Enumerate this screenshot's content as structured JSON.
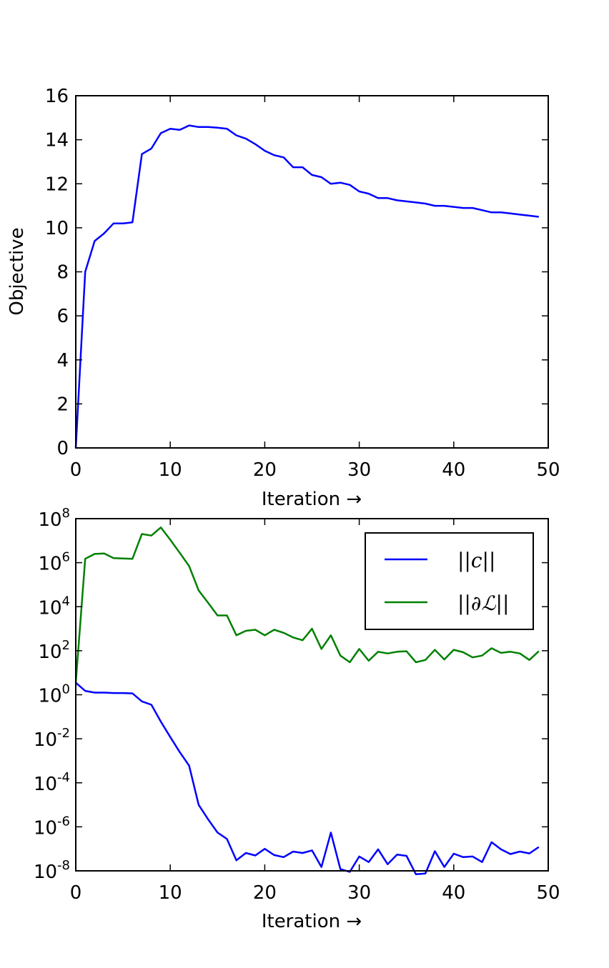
{
  "chart_data": [
    {
      "type": "line",
      "xlabel": "Iteration →",
      "ylabel": "Objective",
      "xlim": [
        0,
        50
      ],
      "ylim": [
        0,
        16
      ],
      "xticks": [
        "0",
        "10",
        "20",
        "30",
        "40",
        "50"
      ],
      "yticks": [
        "0",
        "2",
        "4",
        "6",
        "8",
        "10",
        "12",
        "14",
        "16"
      ],
      "grid": false,
      "series": [
        {
          "color": "#0000ff",
          "x": [
            0,
            1,
            2,
            3,
            4,
            5,
            6,
            7,
            8,
            9,
            10,
            11,
            12,
            13,
            14,
            15,
            16,
            17,
            18,
            19,
            20,
            21,
            22,
            23,
            24,
            25,
            26,
            27,
            28,
            29,
            30,
            31,
            32,
            33,
            34,
            35,
            36,
            37,
            38,
            39,
            40,
            41,
            42,
            43,
            44,
            45,
            46,
            47,
            48,
            49
          ],
          "values": [
            0.0,
            8.0,
            9.4,
            9.75,
            10.2,
            10.2,
            10.25,
            13.35,
            13.6,
            14.3,
            14.5,
            14.45,
            14.65,
            14.58,
            14.58,
            14.55,
            14.5,
            14.2,
            14.05,
            13.8,
            13.5,
            13.3,
            13.2,
            12.75,
            12.75,
            12.4,
            12.3,
            12.0,
            12.05,
            11.95,
            11.65,
            11.55,
            11.35,
            11.35,
            11.25,
            11.2,
            11.15,
            11.1,
            11.0,
            11.0,
            10.95,
            10.9,
            10.9,
            10.8,
            10.7,
            10.7,
            10.65,
            10.6,
            10.55,
            10.5
          ]
        }
      ]
    },
    {
      "type": "line",
      "xlabel": "Iteration →",
      "ylabel": "",
      "xlim": [
        0,
        50
      ],
      "ylim": [
        1e-08,
        100000000.0
      ],
      "yscale": "log",
      "xticks": [
        "0",
        "10",
        "20",
        "30",
        "40",
        "50"
      ],
      "yticks": [
        {
          "base": "10",
          "exp": "-8"
        },
        {
          "base": "10",
          "exp": "-6"
        },
        {
          "base": "10",
          "exp": "-4"
        },
        {
          "base": "10",
          "exp": "-2"
        },
        {
          "base": "10",
          "exp": "0"
        },
        {
          "base": "10",
          "exp": "2"
        },
        {
          "base": "10",
          "exp": "4"
        },
        {
          "base": "10",
          "exp": "6"
        },
        {
          "base": "10",
          "exp": "8"
        }
      ],
      "legend_position": "top-right",
      "grid": false,
      "series": [
        {
          "name": "||c||",
          "color": "#0000ff",
          "x": [
            0,
            1,
            2,
            3,
            4,
            5,
            6,
            7,
            8,
            9,
            10,
            11,
            12,
            13,
            14,
            15,
            16,
            17,
            18,
            19,
            20,
            21,
            22,
            23,
            24,
            25,
            26,
            27,
            28,
            29,
            30,
            31,
            32,
            33,
            34,
            35,
            36,
            37,
            38,
            39,
            40,
            41,
            42,
            43,
            44,
            45,
            46,
            47,
            48,
            49
          ],
          "values": [
            3.5,
            1.5,
            1.25,
            1.25,
            1.2,
            1.2,
            1.15,
            0.5,
            0.35,
            0.06,
            0.012,
            0.0025,
            0.0006,
            1e-05,
            2.2e-06,
            5.5e-07,
            2.8e-07,
            3e-08,
            6.5e-08,
            5e-08,
            1e-07,
            5.2e-08,
            4.2e-08,
            7.5e-08,
            6.5e-08,
            8.5e-08,
            1.5e-08,
            5.5e-07,
            1.2e-08,
            9e-09,
            4.5e-08,
            2.5e-08,
            9.5e-08,
            2e-08,
            5.5e-08,
            4.8e-08,
            7e-09,
            7.5e-09,
            7.8e-08,
            1.5e-08,
            6e-08,
            4.2e-08,
            4.5e-08,
            2.5e-08,
            2e-07,
            9.5e-08,
            5.8e-08,
            7.5e-08,
            6.2e-08,
            1.2e-07
          ]
        },
        {
          "name": "||∂ℒ||",
          "color": "#008000",
          "x": [
            0,
            1,
            2,
            3,
            4,
            5,
            6,
            7,
            8,
            9,
            10,
            11,
            12,
            13,
            14,
            15,
            16,
            17,
            18,
            19,
            20,
            21,
            22,
            23,
            24,
            25,
            26,
            27,
            28,
            29,
            30,
            31,
            32,
            33,
            34,
            35,
            36,
            37,
            38,
            39,
            40,
            41,
            42,
            43,
            44,
            45,
            46,
            47,
            48,
            49
          ],
          "values": [
            3.5,
            1500000,
            2500000,
            2600000,
            1600000,
            1550000,
            1500000,
            20000000,
            17000000,
            40000000,
            11000000,
            2800000,
            700000,
            55000,
            15000,
            4000,
            4000,
            500,
            800,
            900,
            500,
            900,
            650,
            400,
            300,
            1000,
            120,
            500,
            60,
            30,
            120,
            35,
            90,
            75,
            90,
            95,
            30,
            38,
            110,
            40,
            110,
            85,
            50,
            60,
            130,
            80,
            90,
            75,
            38,
            95
          ]
        }
      ]
    }
  ]
}
